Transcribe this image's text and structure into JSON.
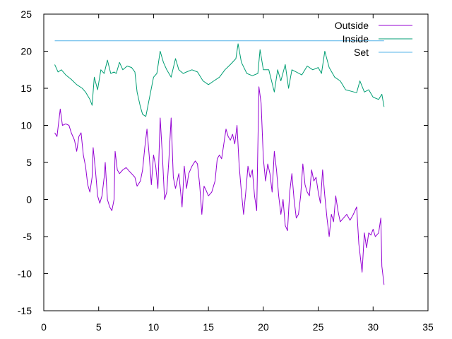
{
  "chart_data": {
    "type": "line",
    "xlim": [
      0,
      35
    ],
    "ylim": [
      -15,
      25
    ],
    "x_ticks": [
      0,
      5,
      10,
      15,
      20,
      25,
      30,
      35
    ],
    "y_ticks": [
      -15,
      -10,
      -5,
      0,
      5,
      10,
      15,
      20,
      25
    ],
    "grid": false,
    "legend_position": "top-right",
    "series": [
      {
        "name": "Outside",
        "color": "#9400d3",
        "points": [
          [
            1.0,
            9.0
          ],
          [
            1.2,
            8.5
          ],
          [
            1.4,
            11.0
          ],
          [
            1.5,
            12.2
          ],
          [
            1.7,
            10.0
          ],
          [
            2.0,
            10.2
          ],
          [
            2.3,
            10.0
          ],
          [
            2.5,
            9.0
          ],
          [
            2.8,
            8.0
          ],
          [
            3.0,
            6.5
          ],
          [
            3.2,
            8.5
          ],
          [
            3.4,
            9.0
          ],
          [
            3.6,
            6.0
          ],
          [
            3.8,
            4.5
          ],
          [
            4.0,
            2.0
          ],
          [
            4.2,
            1.0
          ],
          [
            4.4,
            3.0
          ],
          [
            4.5,
            7.0
          ],
          [
            4.7,
            4.0
          ],
          [
            4.9,
            0.5
          ],
          [
            5.1,
            -0.5
          ],
          [
            5.3,
            0.5
          ],
          [
            5.5,
            3.0
          ],
          [
            5.6,
            5.0
          ],
          [
            5.8,
            0.0
          ],
          [
            6.0,
            -1.0
          ],
          [
            6.2,
            -1.5
          ],
          [
            6.4,
            0.0
          ],
          [
            6.5,
            6.5
          ],
          [
            6.7,
            4.0
          ],
          [
            6.9,
            3.5
          ],
          [
            7.2,
            4.0
          ],
          [
            7.5,
            4.3
          ],
          [
            7.8,
            3.8
          ],
          [
            8.0,
            3.5
          ],
          [
            8.3,
            3.0
          ],
          [
            8.5,
            1.8
          ],
          [
            8.8,
            2.5
          ],
          [
            9.0,
            4.0
          ],
          [
            9.2,
            7.0
          ],
          [
            9.4,
            9.5
          ],
          [
            9.6,
            6.0
          ],
          [
            9.8,
            2.0
          ],
          [
            10.0,
            6.0
          ],
          [
            10.2,
            4.5
          ],
          [
            10.4,
            1.5
          ],
          [
            10.6,
            11.0
          ],
          [
            10.8,
            6.0
          ],
          [
            11.0,
            0.0
          ],
          [
            11.2,
            1.0
          ],
          [
            11.4,
            5.5
          ],
          [
            11.6,
            11.0
          ],
          [
            11.8,
            3.0
          ],
          [
            12.0,
            1.5
          ],
          [
            12.3,
            3.5
          ],
          [
            12.6,
            -1.0
          ],
          [
            12.8,
            4.5
          ],
          [
            13.0,
            1.5
          ],
          [
            13.2,
            3.5
          ],
          [
            13.5,
            4.5
          ],
          [
            13.8,
            5.2
          ],
          [
            14.0,
            4.8
          ],
          [
            14.2,
            2.0
          ],
          [
            14.4,
            -2.0
          ],
          [
            14.6,
            1.8
          ],
          [
            14.8,
            1.2
          ],
          [
            15.0,
            0.5
          ],
          [
            15.3,
            1.0
          ],
          [
            15.6,
            2.5
          ],
          [
            15.8,
            5.5
          ],
          [
            16.0,
            6.0
          ],
          [
            16.2,
            5.5
          ],
          [
            16.4,
            7.5
          ],
          [
            16.6,
            9.5
          ],
          [
            16.8,
            8.5
          ],
          [
            17.0,
            8.0
          ],
          [
            17.2,
            8.8
          ],
          [
            17.4,
            7.5
          ],
          [
            17.6,
            10.0
          ],
          [
            17.8,
            4.5
          ],
          [
            18.0,
            1.0
          ],
          [
            18.2,
            -2.0
          ],
          [
            18.4,
            1.0
          ],
          [
            18.6,
            4.5
          ],
          [
            18.8,
            3.0
          ],
          [
            19.0,
            4.0
          ],
          [
            19.2,
            0.5
          ],
          [
            19.4,
            -1.5
          ],
          [
            19.6,
            15.2
          ],
          [
            19.8,
            13.0
          ],
          [
            20.0,
            5.5
          ],
          [
            20.2,
            2.5
          ],
          [
            20.4,
            4.8
          ],
          [
            20.6,
            3.5
          ],
          [
            20.8,
            1.0
          ],
          [
            21.0,
            6.5
          ],
          [
            21.2,
            4.0
          ],
          [
            21.4,
            0.5
          ],
          [
            21.6,
            -2.0
          ],
          [
            21.8,
            0.0
          ],
          [
            22.0,
            -3.5
          ],
          [
            22.2,
            -4.2
          ],
          [
            22.4,
            1.0
          ],
          [
            22.6,
            3.5
          ],
          [
            22.8,
            0.0
          ],
          [
            23.0,
            -2.5
          ],
          [
            23.2,
            -2.0
          ],
          [
            23.4,
            0.5
          ],
          [
            23.6,
            4.8
          ],
          [
            23.8,
            2.0
          ],
          [
            24.0,
            1.0
          ],
          [
            24.2,
            0.5
          ],
          [
            24.4,
            4.0
          ],
          [
            24.6,
            2.5
          ],
          [
            24.8,
            3.0
          ],
          [
            25.0,
            1.0
          ],
          [
            25.2,
            -0.5
          ],
          [
            25.4,
            4.0
          ],
          [
            25.6,
            0.5
          ],
          [
            25.8,
            -2.5
          ],
          [
            26.0,
            -5.0
          ],
          [
            26.2,
            -2.0
          ],
          [
            26.4,
            -3.0
          ],
          [
            26.6,
            0.5
          ],
          [
            26.8,
            -1.5
          ],
          [
            27.0,
            -3.0
          ],
          [
            27.3,
            -2.5
          ],
          [
            27.6,
            -2.0
          ],
          [
            27.9,
            -2.8
          ],
          [
            28.2,
            -2.0
          ],
          [
            28.5,
            -1.0
          ],
          [
            28.7,
            -6.0
          ],
          [
            29.0,
            -9.8
          ],
          [
            29.2,
            -4.5
          ],
          [
            29.4,
            -6.5
          ],
          [
            29.6,
            -4.5
          ],
          [
            29.8,
            -4.8
          ],
          [
            30.0,
            -4.0
          ],
          [
            30.2,
            -5.0
          ],
          [
            30.5,
            -4.5
          ],
          [
            30.7,
            -2.5
          ],
          [
            30.8,
            -9.0
          ],
          [
            31.0,
            -11.5
          ]
        ]
      },
      {
        "name": "Inside",
        "color": "#009e73",
        "points": [
          [
            1.0,
            18.2
          ],
          [
            1.3,
            17.2
          ],
          [
            1.6,
            17.5
          ],
          [
            2.0,
            16.8
          ],
          [
            2.5,
            16.2
          ],
          [
            3.0,
            15.5
          ],
          [
            3.5,
            15.0
          ],
          [
            3.8,
            14.5
          ],
          [
            4.2,
            13.5
          ],
          [
            4.4,
            12.7
          ],
          [
            4.6,
            16.5
          ],
          [
            4.9,
            14.8
          ],
          [
            5.2,
            17.5
          ],
          [
            5.5,
            17.0
          ],
          [
            5.8,
            18.8
          ],
          [
            6.1,
            17.0
          ],
          [
            6.4,
            17.2
          ],
          [
            6.6,
            17.0
          ],
          [
            6.9,
            18.5
          ],
          [
            7.2,
            17.5
          ],
          [
            7.6,
            18.0
          ],
          [
            8.0,
            17.8
          ],
          [
            8.3,
            17.2
          ],
          [
            8.5,
            14.5
          ],
          [
            8.8,
            12.5
          ],
          [
            9.0,
            11.5
          ],
          [
            9.3,
            11.2
          ],
          [
            9.6,
            13.5
          ],
          [
            10.0,
            16.5
          ],
          [
            10.3,
            17.0
          ],
          [
            10.6,
            20.0
          ],
          [
            10.9,
            18.5
          ],
          [
            11.2,
            17.5
          ],
          [
            11.6,
            16.5
          ],
          [
            12.0,
            19.0
          ],
          [
            12.3,
            17.5
          ],
          [
            12.7,
            17.0
          ],
          [
            13.0,
            17.2
          ],
          [
            13.5,
            17.5
          ],
          [
            14.0,
            17.2
          ],
          [
            14.5,
            16.0
          ],
          [
            15.0,
            15.5
          ],
          [
            15.5,
            16.0
          ],
          [
            16.0,
            16.5
          ],
          [
            16.5,
            17.5
          ],
          [
            17.0,
            18.2
          ],
          [
            17.5,
            19.0
          ],
          [
            17.7,
            21.0
          ],
          [
            18.0,
            18.5
          ],
          [
            18.5,
            17.0
          ],
          [
            19.0,
            16.7
          ],
          [
            19.5,
            17.0
          ],
          [
            19.7,
            20.2
          ],
          [
            20.0,
            17.5
          ],
          [
            20.5,
            17.5
          ],
          [
            21.0,
            14.5
          ],
          [
            21.3,
            17.5
          ],
          [
            21.6,
            16.0
          ],
          [
            22.0,
            18.2
          ],
          [
            22.3,
            15.0
          ],
          [
            22.6,
            17.5
          ],
          [
            23.0,
            17.2
          ],
          [
            23.5,
            16.8
          ],
          [
            24.0,
            18.0
          ],
          [
            24.5,
            17.5
          ],
          [
            25.0,
            17.8
          ],
          [
            25.3,
            17.0
          ],
          [
            25.6,
            20.0
          ],
          [
            26.0,
            17.8
          ],
          [
            26.5,
            16.5
          ],
          [
            27.0,
            16.0
          ],
          [
            27.5,
            14.8
          ],
          [
            28.0,
            14.6
          ],
          [
            28.5,
            14.4
          ],
          [
            28.8,
            16.0
          ],
          [
            29.2,
            14.5
          ],
          [
            29.6,
            14.8
          ],
          [
            30.0,
            13.8
          ],
          [
            30.5,
            13.5
          ],
          [
            30.8,
            14.2
          ],
          [
            31.0,
            12.5
          ]
        ]
      },
      {
        "name": "Set",
        "color": "#56b4e9",
        "points": [
          [
            1.0,
            21.4
          ],
          [
            31.0,
            21.4
          ]
        ]
      }
    ]
  }
}
